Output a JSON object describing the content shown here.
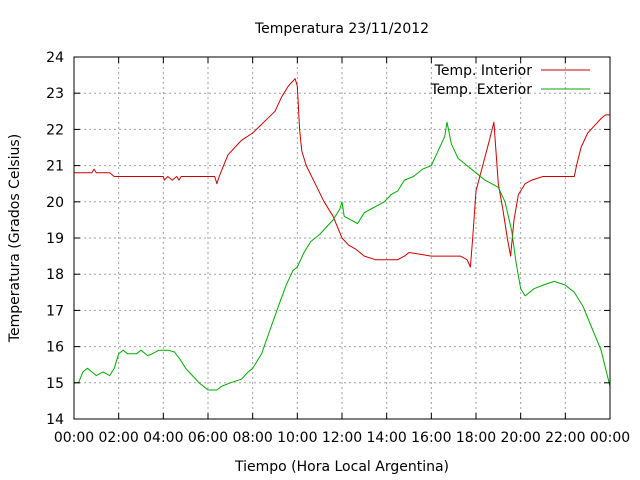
{
  "chart_data": {
    "type": "line",
    "title": "Temperatura 23/11/2012",
    "xlabel": "Tiempo (Hora Local Argentina)",
    "ylabel": "Temperatura (Grados Celsius)",
    "xlim": [
      0,
      24
    ],
    "ylim": [
      14,
      24
    ],
    "x_tick_labels": [
      "00:00",
      "02:00",
      "04:00",
      "06:00",
      "08:00",
      "10:00",
      "12:00",
      "14:00",
      "16:00",
      "18:00",
      "20:00",
      "22:00",
      "00:00"
    ],
    "y_ticks": [
      14,
      15,
      16,
      17,
      18,
      19,
      20,
      21,
      22,
      23,
      24
    ],
    "grid": true,
    "legend_position": "top-right",
    "x_unit": "hours since 00:00",
    "series": [
      {
        "name": "Temp. Interior",
        "color": "#cc0000",
        "points": [
          [
            0.0,
            20.8
          ],
          [
            0.8,
            20.8
          ],
          [
            0.9,
            20.9
          ],
          [
            1.0,
            20.8
          ],
          [
            1.6,
            20.8
          ],
          [
            1.8,
            20.7
          ],
          [
            2.5,
            20.7
          ],
          [
            3.5,
            20.7
          ],
          [
            4.0,
            20.7
          ],
          [
            4.05,
            20.6
          ],
          [
            4.2,
            20.7
          ],
          [
            4.4,
            20.6
          ],
          [
            4.6,
            20.7
          ],
          [
            4.7,
            20.6
          ],
          [
            4.8,
            20.7
          ],
          [
            5.5,
            20.7
          ],
          [
            6.0,
            20.7
          ],
          [
            6.3,
            20.7
          ],
          [
            6.4,
            20.5
          ],
          [
            6.5,
            20.7
          ],
          [
            6.7,
            21.0
          ],
          [
            6.9,
            21.3
          ],
          [
            7.2,
            21.5
          ],
          [
            7.5,
            21.7
          ],
          [
            8.0,
            21.9
          ],
          [
            8.5,
            22.2
          ],
          [
            9.0,
            22.5
          ],
          [
            9.3,
            22.9
          ],
          [
            9.6,
            23.2
          ],
          [
            9.9,
            23.4
          ],
          [
            10.0,
            23.2
          ],
          [
            10.1,
            22.0
          ],
          [
            10.2,
            21.4
          ],
          [
            10.4,
            21.0
          ],
          [
            10.8,
            20.5
          ],
          [
            11.2,
            20.0
          ],
          [
            11.6,
            19.6
          ],
          [
            11.8,
            19.3
          ],
          [
            12.0,
            19.0
          ],
          [
            12.3,
            18.8
          ],
          [
            12.6,
            18.7
          ],
          [
            13.0,
            18.5
          ],
          [
            13.5,
            18.4
          ],
          [
            14.0,
            18.4
          ],
          [
            14.5,
            18.4
          ],
          [
            14.8,
            18.5
          ],
          [
            15.0,
            18.6
          ],
          [
            15.5,
            18.55
          ],
          [
            16.0,
            18.5
          ],
          [
            16.5,
            18.5
          ],
          [
            17.0,
            18.5
          ],
          [
            17.3,
            18.5
          ],
          [
            17.6,
            18.4
          ],
          [
            17.75,
            18.2
          ],
          [
            17.85,
            19.0
          ],
          [
            18.0,
            20.3
          ],
          [
            18.3,
            21.0
          ],
          [
            18.6,
            21.7
          ],
          [
            18.8,
            22.2
          ],
          [
            19.0,
            20.5
          ],
          [
            19.2,
            19.8
          ],
          [
            19.4,
            19.0
          ],
          [
            19.55,
            18.5
          ],
          [
            19.7,
            19.5
          ],
          [
            19.9,
            20.2
          ],
          [
            20.2,
            20.5
          ],
          [
            20.5,
            20.6
          ],
          [
            21.0,
            20.7
          ],
          [
            22.0,
            20.7
          ],
          [
            22.4,
            20.7
          ],
          [
            22.5,
            21.0
          ],
          [
            22.7,
            21.5
          ],
          [
            23.0,
            21.9
          ],
          [
            23.3,
            22.1
          ],
          [
            23.6,
            22.3
          ],
          [
            23.8,
            22.4
          ],
          [
            24.0,
            22.4
          ]
        ]
      },
      {
        "name": "Temp. Exterior",
        "color": "#00aa00",
        "points": [
          [
            0.0,
            15.0
          ],
          [
            0.2,
            15.0
          ],
          [
            0.4,
            15.3
          ],
          [
            0.6,
            15.4
          ],
          [
            0.8,
            15.3
          ],
          [
            1.0,
            15.2
          ],
          [
            1.3,
            15.3
          ],
          [
            1.6,
            15.2
          ],
          [
            1.8,
            15.4
          ],
          [
            2.0,
            15.8
          ],
          [
            2.2,
            15.9
          ],
          [
            2.4,
            15.8
          ],
          [
            2.8,
            15.8
          ],
          [
            3.0,
            15.9
          ],
          [
            3.3,
            15.75
          ],
          [
            3.5,
            15.8
          ],
          [
            3.8,
            15.9
          ],
          [
            4.2,
            15.9
          ],
          [
            4.5,
            15.85
          ],
          [
            4.8,
            15.6
          ],
          [
            5.0,
            15.4
          ],
          [
            5.3,
            15.2
          ],
          [
            5.6,
            15.0
          ],
          [
            6.0,
            14.8
          ],
          [
            6.4,
            14.8
          ],
          [
            6.6,
            14.9
          ],
          [
            7.0,
            15.0
          ],
          [
            7.5,
            15.1
          ],
          [
            7.8,
            15.3
          ],
          [
            8.0,
            15.4
          ],
          [
            8.4,
            15.8
          ],
          [
            8.8,
            16.5
          ],
          [
            9.2,
            17.2
          ],
          [
            9.5,
            17.7
          ],
          [
            9.8,
            18.1
          ],
          [
            10.0,
            18.2
          ],
          [
            10.3,
            18.6
          ],
          [
            10.6,
            18.9
          ],
          [
            11.0,
            19.1
          ],
          [
            11.3,
            19.3
          ],
          [
            11.6,
            19.5
          ],
          [
            11.9,
            19.8
          ],
          [
            12.0,
            20.0
          ],
          [
            12.1,
            19.6
          ],
          [
            12.4,
            19.5
          ],
          [
            12.7,
            19.4
          ],
          [
            13.0,
            19.7
          ],
          [
            13.3,
            19.8
          ],
          [
            13.6,
            19.9
          ],
          [
            13.9,
            20.0
          ],
          [
            14.2,
            20.2
          ],
          [
            14.5,
            20.3
          ],
          [
            14.8,
            20.6
          ],
          [
            15.2,
            20.7
          ],
          [
            15.6,
            20.9
          ],
          [
            16.0,
            21.0
          ],
          [
            16.3,
            21.4
          ],
          [
            16.6,
            21.8
          ],
          [
            16.7,
            22.2
          ],
          [
            16.9,
            21.6
          ],
          [
            17.2,
            21.2
          ],
          [
            17.6,
            21.0
          ],
          [
            18.0,
            20.8
          ],
          [
            18.4,
            20.6
          ],
          [
            18.7,
            20.5
          ],
          [
            19.0,
            20.4
          ],
          [
            19.3,
            20.0
          ],
          [
            19.6,
            19.2
          ],
          [
            19.8,
            18.3
          ],
          [
            20.0,
            17.6
          ],
          [
            20.2,
            17.4
          ],
          [
            20.6,
            17.6
          ],
          [
            21.0,
            17.7
          ],
          [
            21.5,
            17.8
          ],
          [
            22.0,
            17.7
          ],
          [
            22.4,
            17.5
          ],
          [
            22.8,
            17.1
          ],
          [
            23.2,
            16.5
          ],
          [
            23.6,
            15.9
          ],
          [
            24.0,
            14.9
          ]
        ]
      }
    ]
  }
}
